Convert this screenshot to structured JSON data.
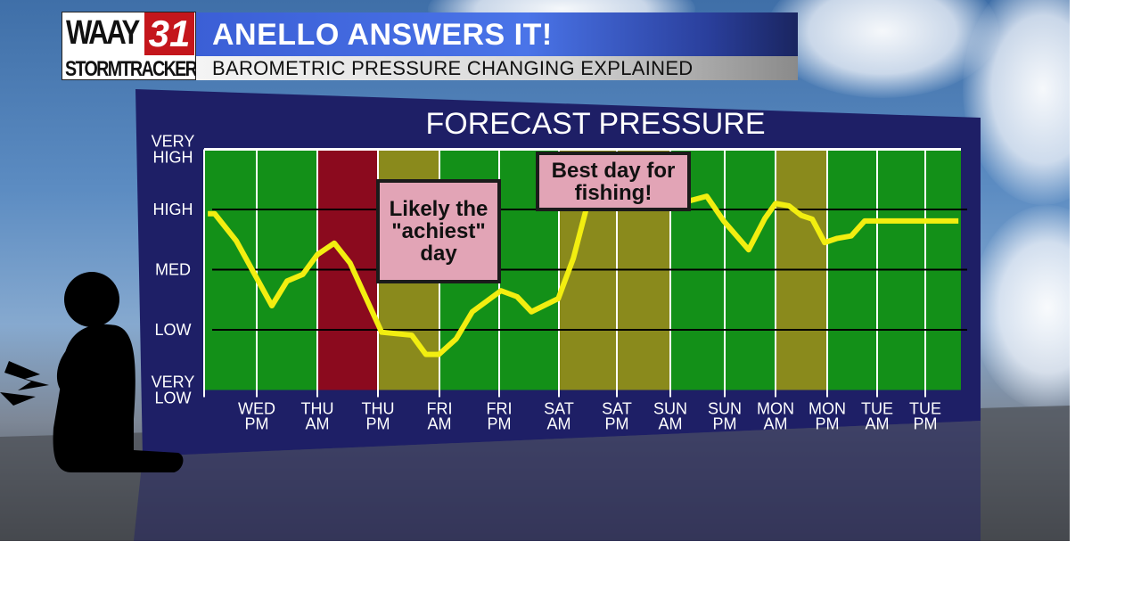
{
  "header": {
    "logo_text": "WAAY 31 STORMTRACKER",
    "logo_word": "WAAY",
    "logo_number": "31",
    "logo_sub": "STORMTRACKER",
    "title": "ANELLO ANSWERS IT!",
    "subtitle": "BAROMETRIC PRESSURE CHANGING EXPLAINED"
  },
  "annotations": {
    "achiest": "Likely the \"achiest\" day",
    "fishing": "Best day for fishing!"
  },
  "colors": {
    "panel": "#1e1f66",
    "normal": "#139018",
    "achy": "#8b0a1e",
    "moderate": "#8a8a1c",
    "line": "#f2ee10",
    "note": "#e2a4b6"
  },
  "chart_data": {
    "type": "line",
    "title": "FORECAST PRESSURE",
    "y_levels": [
      "VERY LOW",
      "LOW",
      "MED",
      "HIGH",
      "VERY HIGH"
    ],
    "ylim": [
      0,
      4
    ],
    "categories": [
      "WED PM",
      "THU AM",
      "THU PM",
      "FRI AM",
      "FRI PM",
      "SAT AM",
      "SAT PM",
      "SUN AM",
      "SUN PM",
      "MON AM",
      "MON PM",
      "TUE AM",
      "TUE PM"
    ],
    "reference_lines": [
      1,
      2,
      3
    ],
    "bands": [
      {
        "from": 1,
        "to": 2,
        "color": "#8b0a1e"
      },
      {
        "from": 2,
        "to": 3,
        "color": "#8a8a1c"
      },
      {
        "from": 5,
        "to": 7,
        "color": "#8a8a1c"
      },
      {
        "from": 9,
        "to": 10,
        "color": "#8a8a1c"
      }
    ],
    "series": [
      {
        "points": [
          [
            -0.93,
            2.93
          ],
          [
            -0.8,
            2.93
          ],
          [
            -0.39,
            2.48
          ],
          [
            0.25,
            1.4
          ],
          [
            0.5,
            1.81
          ],
          [
            0.76,
            1.92
          ],
          [
            1.0,
            2.25
          ],
          [
            1.28,
            2.44
          ],
          [
            1.54,
            2.11
          ],
          [
            2.06,
            0.96
          ],
          [
            2.55,
            0.91
          ],
          [
            2.78,
            0.59
          ],
          [
            2.99,
            0.59
          ],
          [
            3.28,
            0.85
          ],
          [
            3.55,
            1.3
          ],
          [
            4.03,
            1.65
          ],
          [
            4.3,
            1.55
          ],
          [
            4.54,
            1.3
          ],
          [
            4.99,
            1.52
          ],
          [
            5.25,
            2.19
          ],
          [
            5.51,
            3.15
          ],
          [
            5.82,
            3.74
          ],
          [
            7.38,
            3.15
          ],
          [
            7.67,
            3.22
          ],
          [
            7.98,
            2.81
          ],
          [
            8.47,
            2.33
          ],
          [
            8.79,
            2.85
          ],
          [
            9.0,
            3.1
          ],
          [
            9.26,
            3.06
          ],
          [
            9.5,
            2.9
          ],
          [
            9.71,
            2.84
          ],
          [
            9.95,
            2.45
          ],
          [
            10.2,
            2.52
          ],
          [
            10.48,
            2.56
          ],
          [
            10.75,
            2.81
          ],
          [
            12.93,
            2.81
          ]
        ]
      }
    ]
  }
}
